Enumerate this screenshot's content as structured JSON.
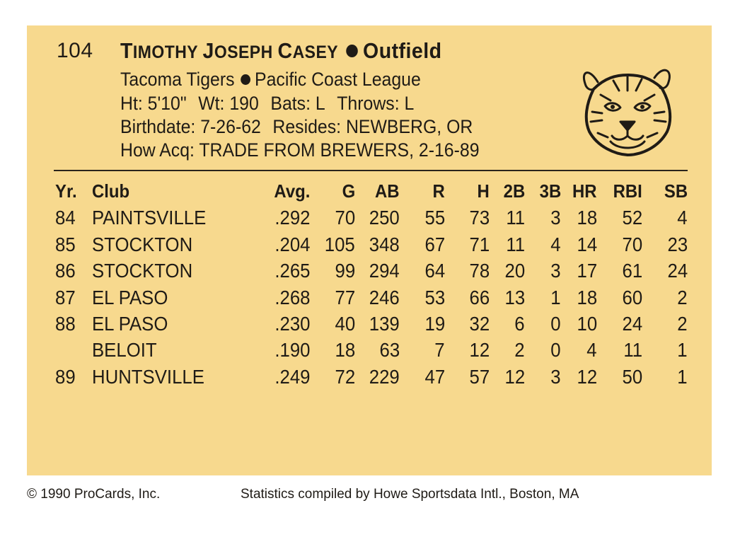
{
  "card": {
    "number": "104",
    "name_first": "T",
    "name_first_rest": "IMOTHY ",
    "name_middle": "J",
    "name_middle_rest": "OSEPH ",
    "name_last": "C",
    "name_last_rest": "ASEY",
    "position": "Outfield",
    "team": "Tacoma Tigers",
    "league": "Pacific Coast League",
    "height": "Ht: 5'10\"",
    "weight": "Wt: 190",
    "bats": "Bats: L",
    "throws": "Throws: L",
    "birthdate": "Birthdate: 7-26-62",
    "resides": "Resides: NEWBERG, OR",
    "how_acquired": "How Acq: TRADE FROM BREWERS, 2-16-89",
    "logo": "tiger-head-icon"
  },
  "stats": {
    "headers": [
      "Yr.",
      "Club",
      "Avg.",
      "G",
      "AB",
      "R",
      "H",
      "2B",
      "3B",
      "HR",
      "RBI",
      "SB"
    ],
    "rows": [
      [
        "84",
        "PAINTSVILLE",
        ".292",
        "70",
        "250",
        "55",
        "73",
        "11",
        "3",
        "18",
        "52",
        "4"
      ],
      [
        "85",
        "STOCKTON",
        ".204",
        "105",
        "348",
        "67",
        "71",
        "11",
        "4",
        "14",
        "70",
        "23"
      ],
      [
        "86",
        "STOCKTON",
        ".265",
        "99",
        "294",
        "64",
        "78",
        "20",
        "3",
        "17",
        "61",
        "24"
      ],
      [
        "87",
        "EL PASO",
        ".268",
        "77",
        "246",
        "53",
        "66",
        "13",
        "1",
        "18",
        "60",
        "2"
      ],
      [
        "88",
        "EL PASO",
        ".230",
        "40",
        "139",
        "19",
        "32",
        "6",
        "0",
        "10",
        "24",
        "2"
      ],
      [
        "",
        "BELOIT",
        ".190",
        "18",
        "63",
        "7",
        "12",
        "2",
        "0",
        "4",
        "11",
        "1"
      ],
      [
        "89",
        "HUNTSVILLE",
        ".249",
        "72",
        "229",
        "47",
        "57",
        "12",
        "3",
        "12",
        "50",
        "1"
      ]
    ]
  },
  "footer": {
    "copyright": "© 1990 ProCards, Inc.",
    "credit": "Statistics compiled by Howe Sportsdata Intl., Boston, MA"
  },
  "colors": {
    "panel": "#f7d98e",
    "ink": "#1f1b16",
    "card": "#ffffff"
  }
}
